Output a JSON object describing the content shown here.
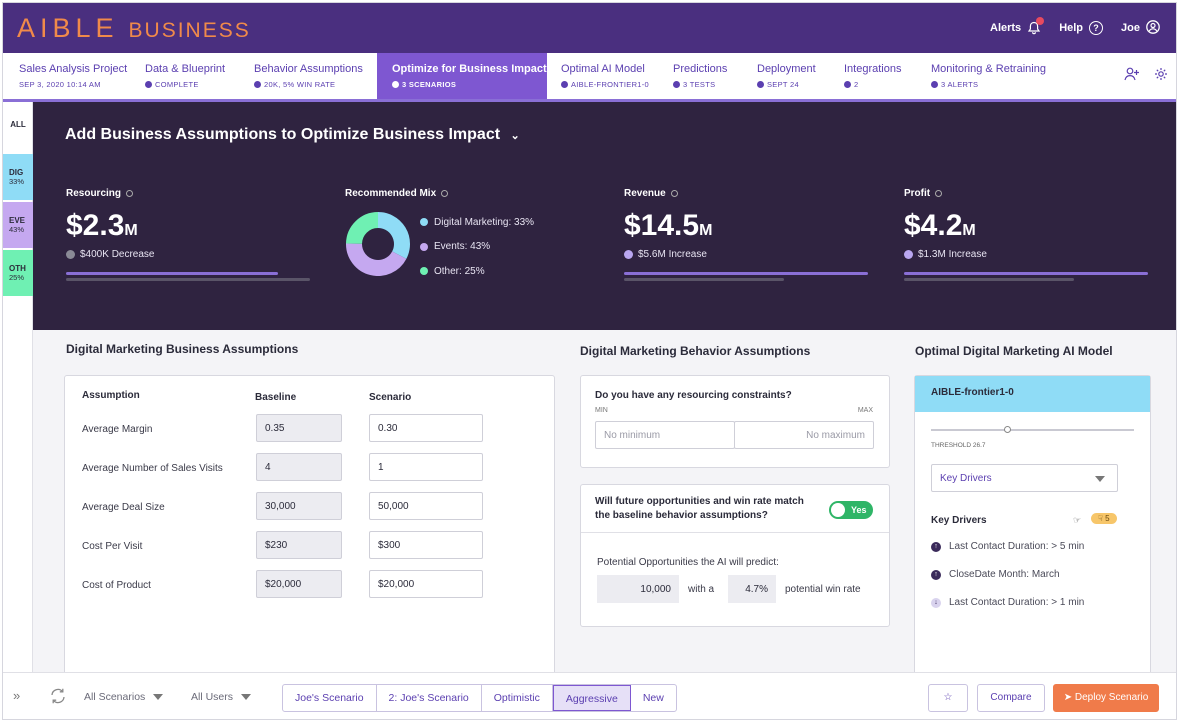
{
  "brand": {
    "logo": "AIBLE",
    "logo_sub": "BUSINESS"
  },
  "topnav": {
    "alerts": "Alerts",
    "help": "Help",
    "user": "Joe"
  },
  "steps": [
    {
      "title": "Sales Analysis Project",
      "sub": "SEP 3, 2020 10:14 AM",
      "check": false
    },
    {
      "title": "Data & Blueprint",
      "sub": "COMPLETE",
      "check": true
    },
    {
      "title": "Behavior Assumptions",
      "sub": "20K, 5% WIN RATE",
      "check": true
    },
    {
      "title": "Optimize for Business Impact",
      "sub": "3 SCENARIOS",
      "check": true
    },
    {
      "title": "Optimal AI Model",
      "sub": "AIBLE-FRONTIER1-0",
      "check": true
    },
    {
      "title": "Predictions",
      "sub": "3 TESTS",
      "check": true
    },
    {
      "title": "Deployment",
      "sub": "SEPT 24",
      "check": true
    },
    {
      "title": "Integrations",
      "sub": "2",
      "check": true
    },
    {
      "title": "Monitoring & Retraining",
      "sub": "3 ALERTS",
      "check": true
    }
  ],
  "rail": {
    "all": "ALL",
    "segments": [
      {
        "code": "DIG",
        "pct": "33%",
        "color": "#8fdcf6"
      },
      {
        "code": "EVE",
        "pct": "43%",
        "color": "#c5a8f0"
      },
      {
        "code": "OTH",
        "pct": "25%",
        "color": "#6ff0b3"
      }
    ]
  },
  "hero": {
    "title": "Add Business Assumptions to Optimize Business Impact",
    "resourcing": {
      "label": "Resourcing",
      "value": "$2.3",
      "unit": "M",
      "change": "$400K Decrease",
      "progress": 0.87
    },
    "mix": {
      "label": "Recommended Mix",
      "items": [
        {
          "label": "Digital Marketing: 33%",
          "pct": 33,
          "color": "#8fdcf6"
        },
        {
          "label": "Events: 43%",
          "pct": 43,
          "color": "#c5a8f0"
        },
        {
          "label": "Other: 25%",
          "pct": 25,
          "color": "#6ff0b3"
        }
      ]
    },
    "revenue": {
      "label": "Revenue",
      "value": "$14.5",
      "unit": "M",
      "change": "$5.6M Increase",
      "progress": 1.0
    },
    "profit": {
      "label": "Profit",
      "value": "$4.2",
      "unit": "M",
      "change": "$1.3M Increase",
      "progress": 1.0
    }
  },
  "assumptions": {
    "title": "Digital Marketing Business Assumptions",
    "col_assumption": "Assumption",
    "col_baseline": "Baseline",
    "col_scenario": "Scenario",
    "rows": [
      {
        "label": "Average Margin",
        "baseline": "0.35",
        "scenario": "0.30"
      },
      {
        "label": "Average Number of Sales Visits",
        "baseline": "4",
        "scenario": "1"
      },
      {
        "label": "Average Deal Size",
        "baseline": "30,000",
        "scenario": "50,000"
      },
      {
        "label": "Cost Per Visit",
        "baseline": "$230",
        "scenario": "$300"
      },
      {
        "label": "Cost of Product",
        "baseline": "$20,000",
        "scenario": "$20,000"
      }
    ]
  },
  "behavior": {
    "title": "Digital Marketing Behavior Assumptions",
    "constraints_q": "Do you have any resourcing constraints?",
    "min_label": "MIN",
    "max_label": "MAX",
    "min_placeholder": "No minimum",
    "max_placeholder": "No maximum",
    "match_q": "Will future opportunities and win rate match the baseline behavior assumptions?",
    "toggle_label": "Yes",
    "predict_label": "Potential Opportunities the AI will predict:",
    "opportunities": "10,000",
    "with_a": "with a",
    "win_rate": "4.7%",
    "potential_win": "potential win rate"
  },
  "model": {
    "title": "Optimal Digital Marketing AI Model",
    "name": "AIBLE-frontier1-0",
    "threshold": "THRESHOLD 26.7",
    "threshold_level": 0.38,
    "dropdown": "Key Drivers",
    "drivers_title": "Key Drivers",
    "badge": "5",
    "drivers": [
      {
        "label": "Last Contact Duration: > 5 min",
        "dir": "up"
      },
      {
        "label": "CloseDate Month:  March",
        "dir": "up"
      },
      {
        "label": "Last Contact Duration: > 1 min",
        "dir": "down"
      }
    ]
  },
  "bottom": {
    "filter_scenarios": "All Scenarios",
    "filter_users": "All Users",
    "scenarios": [
      "Joe's Scenario",
      "2: Joe's Scenario",
      "Optimistic",
      "Aggressive",
      "New"
    ],
    "selected": 3,
    "compare": "Compare",
    "deploy": "Deploy Scenario"
  }
}
